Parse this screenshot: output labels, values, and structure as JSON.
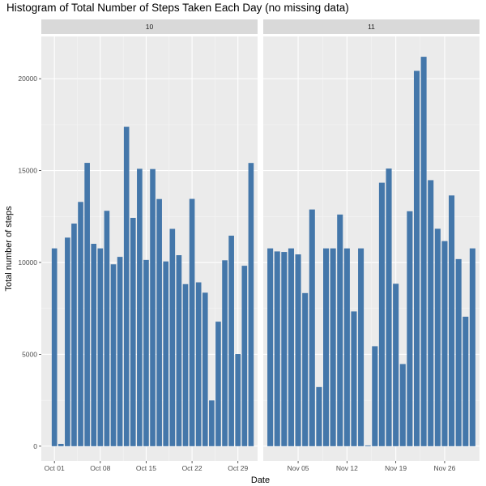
{
  "title": "Histogram of Total Number of Steps Taken Each Day (no missing data)",
  "chart_data": {
    "type": "bar",
    "title": "Histogram of Total Number of Steps Taken Each Day (no missing data)",
    "xlabel": "Date",
    "ylabel": "Total number of steps",
    "ylim": [
      -800,
      22300
    ],
    "yticks": [
      0,
      5000,
      10000,
      15000,
      20000
    ],
    "bar_color": "#4477aa",
    "grid": true,
    "panels": [
      {
        "strip_label": "10",
        "xlim": [
          "2012-09-29",
          "2012-11-01"
        ],
        "xticks": [
          {
            "date": "2012-10-01",
            "label": "Oct 01"
          },
          {
            "date": "2012-10-08",
            "label": "Oct 08"
          },
          {
            "date": "2012-10-15",
            "label": "Oct 15"
          },
          {
            "date": "2012-10-22",
            "label": "Oct 22"
          },
          {
            "date": "2012-10-29",
            "label": "Oct 29"
          }
        ],
        "x": [
          "2012-10-01",
          "2012-10-02",
          "2012-10-03",
          "2012-10-04",
          "2012-10-05",
          "2012-10-06",
          "2012-10-07",
          "2012-10-08",
          "2012-10-09",
          "2012-10-10",
          "2012-10-11",
          "2012-10-12",
          "2012-10-13",
          "2012-10-14",
          "2012-10-15",
          "2012-10-16",
          "2012-10-17",
          "2012-10-18",
          "2012-10-19",
          "2012-10-20",
          "2012-10-21",
          "2012-10-22",
          "2012-10-23",
          "2012-10-24",
          "2012-10-25",
          "2012-10-26",
          "2012-10-27",
          "2012-10-28",
          "2012-10-29",
          "2012-10-30",
          "2012-10-31"
        ],
        "values": [
          10766,
          126,
          11352,
          12116,
          13294,
          15420,
          11015,
          10766,
          12811,
          9900,
          10304,
          17382,
          12426,
          15098,
          10139,
          15084,
          13452,
          10056,
          11829,
          10395,
          8821,
          13460,
          8918,
          8355,
          2492,
          6778,
          10119,
          11458,
          5018,
          9819,
          15414
        ]
      },
      {
        "strip_label": "11",
        "xlim": [
          "2012-10-31",
          "2012-12-01"
        ],
        "xticks": [
          {
            "date": "2012-11-05",
            "label": "Nov 05"
          },
          {
            "date": "2012-11-12",
            "label": "Nov 12"
          },
          {
            "date": "2012-11-19",
            "label": "Nov 19"
          },
          {
            "date": "2012-11-26",
            "label": "Nov 26"
          }
        ],
        "x": [
          "2012-11-01",
          "2012-11-02",
          "2012-11-03",
          "2012-11-04",
          "2012-11-05",
          "2012-11-06",
          "2012-11-07",
          "2012-11-08",
          "2012-11-09",
          "2012-11-10",
          "2012-11-11",
          "2012-11-12",
          "2012-11-13",
          "2012-11-14",
          "2012-11-15",
          "2012-11-16",
          "2012-11-17",
          "2012-11-18",
          "2012-11-19",
          "2012-11-20",
          "2012-11-21",
          "2012-11-22",
          "2012-11-23",
          "2012-11-24",
          "2012-11-25",
          "2012-11-26",
          "2012-11-27",
          "2012-11-28",
          "2012-11-29",
          "2012-11-30"
        ],
        "values": [
          10766,
          10600,
          10571,
          10766,
          10439,
          8334,
          12883,
          3219,
          10766,
          10766,
          12608,
          10765,
          7336,
          10766,
          41,
          5441,
          14339,
          15110,
          8841,
          4472,
          12787,
          20427,
          21194,
          14478,
          11834,
          11162,
          13646,
          10183,
          7047,
          10766
        ]
      }
    ]
  }
}
